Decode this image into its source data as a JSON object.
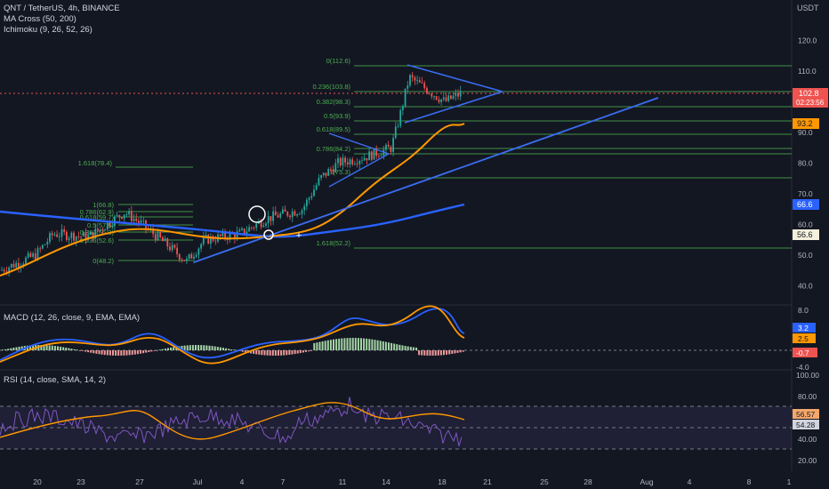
{
  "header": {
    "symbol_line": "QNT / TetherUS, 4h, BINANCE",
    "ind1": "MA Cross (50, 200)",
    "ind2": "Ichimoku (9, 26, 52, 26)",
    "currency": "USDT"
  },
  "macd_label": "MACD (12, 26, close, 9, EMA, EMA)",
  "rsi_label": "RSI (14, close, SMA, 14, 2)",
  "colors": {
    "bg": "#131722",
    "up": "#26a69a",
    "down": "#ef5350",
    "blue": "#2962ff",
    "orange": "#ff9800",
    "fib": "#4caf50",
    "trend": "#3a6df0",
    "rsi": "#7e57c2"
  },
  "price_axis": {
    "ticks": [
      "120.0",
      "110.0",
      "100.0",
      "90.0",
      "80.0",
      "70.0",
      "60.0",
      "50.0",
      "40.0"
    ],
    "last_price": "102.8",
    "countdown": "02:23:56",
    "ma_fast": "93.2",
    "ma_slow": "66.6",
    "ichimoku": "56.6"
  },
  "macd_axis": {
    "ticks": [
      "8.0",
      "-4.0"
    ],
    "v1": "3.2",
    "v2": "2.5",
    "v3": "-0.7"
  },
  "rsi_axis": {
    "ticks": [
      "100.00",
      "80.00",
      "40.00",
      "20.00"
    ],
    "v1": "56.57",
    "v2": "54.28"
  },
  "time_axis": [
    "20",
    "23",
    "27",
    "Jul",
    "4",
    "7",
    "11",
    "14",
    "18",
    "21",
    "25",
    "28",
    "Aug",
    "4",
    "8",
    "1"
  ],
  "fib_left": [
    "1(66.8)",
    "0.786(62.9)",
    "0.618(59.7)",
    "0.5(57.5)",
    "0.382(55.3)",
    "0.236(52.6)",
    "0(48.2)"
  ],
  "fib_mid": [
    "0.786(84.2)",
    "1(75.3)",
    "1.618(78.4)"
  ],
  "fib_right": [
    "0(112.6)",
    "0.236(103.8)",
    "0.382(98.3)",
    "0.5(93.9)",
    "0.618(89.5)",
    "1.618(52.2)"
  ],
  "chart_data": {
    "type": "line",
    "title": "QNT / TetherUS, 4h, BINANCE",
    "xlabel": "",
    "ylabel": "USDT",
    "ylim": [
      40,
      120
    ],
    "series": [
      {
        "name": "MA Cross (50, 200)",
        "values": [
          56.6,
          58,
          60,
          66.6,
          75,
          85,
          93.2
        ]
      }
    ]
  }
}
